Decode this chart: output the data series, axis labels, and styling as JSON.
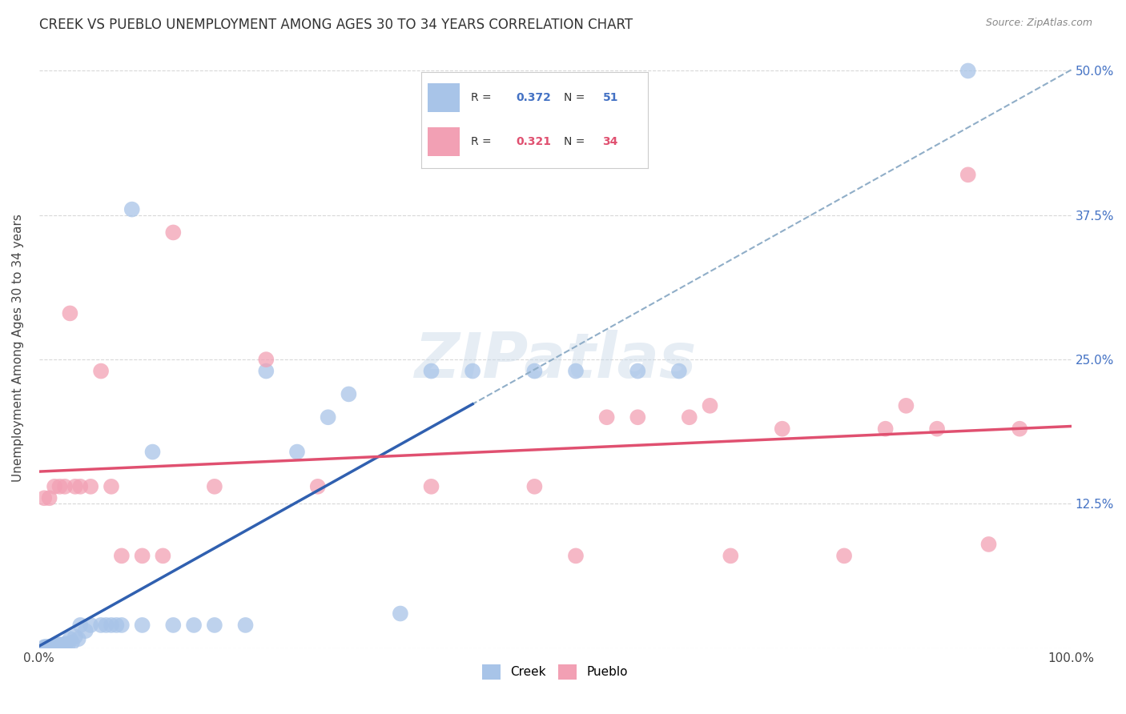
{
  "title": "CREEK VS PUEBLO UNEMPLOYMENT AMONG AGES 30 TO 34 YEARS CORRELATION CHART",
  "source": "Source: ZipAtlas.com",
  "ylabel": "Unemployment Among Ages 30 to 34 years",
  "xlim": [
    0,
    1.0
  ],
  "ylim": [
    0,
    0.52
  ],
  "yticks": [
    0.0,
    0.125,
    0.25,
    0.375,
    0.5
  ],
  "yticklabels": [
    "",
    "12.5%",
    "25.0%",
    "37.5%",
    "50.0%"
  ],
  "creek_color": "#a8c4e8",
  "pueblo_color": "#f2a0b4",
  "creek_line_color": "#3060b0",
  "pueblo_line_color": "#e05070",
  "dashed_line_color": "#90aec8",
  "creek_R": 0.372,
  "creek_N": 51,
  "pueblo_R": 0.321,
  "pueblo_N": 34,
  "creek_scatter": [
    [
      0.005,
      0.001
    ],
    [
      0.006,
      0.001
    ],
    [
      0.007,
      0.001
    ],
    [
      0.008,
      0.001
    ],
    [
      0.009,
      0.001
    ],
    [
      0.01,
      0.001
    ],
    [
      0.011,
      0.001
    ],
    [
      0.012,
      0.001
    ],
    [
      0.013,
      0.001
    ],
    [
      0.014,
      0.001
    ],
    [
      0.015,
      0.001
    ],
    [
      0.016,
      0.001
    ],
    [
      0.017,
      0.002
    ],
    [
      0.018,
      0.001
    ],
    [
      0.019,
      0.003
    ],
    [
      0.02,
      0.003
    ],
    [
      0.022,
      0.003
    ],
    [
      0.024,
      0.003
    ],
    [
      0.026,
      0.004
    ],
    [
      0.028,
      0.003
    ],
    [
      0.03,
      0.008
    ],
    [
      0.032,
      0.005
    ],
    [
      0.035,
      0.01
    ],
    [
      0.038,
      0.008
    ],
    [
      0.04,
      0.02
    ],
    [
      0.045,
      0.015
    ],
    [
      0.05,
      0.02
    ],
    [
      0.06,
      0.02
    ],
    [
      0.065,
      0.02
    ],
    [
      0.07,
      0.02
    ],
    [
      0.075,
      0.02
    ],
    [
      0.08,
      0.02
    ],
    [
      0.09,
      0.38
    ],
    [
      0.1,
      0.02
    ],
    [
      0.11,
      0.17
    ],
    [
      0.13,
      0.02
    ],
    [
      0.15,
      0.02
    ],
    [
      0.17,
      0.02
    ],
    [
      0.2,
      0.02
    ],
    [
      0.22,
      0.24
    ],
    [
      0.25,
      0.17
    ],
    [
      0.28,
      0.2
    ],
    [
      0.3,
      0.22
    ],
    [
      0.35,
      0.03
    ],
    [
      0.38,
      0.24
    ],
    [
      0.42,
      0.24
    ],
    [
      0.48,
      0.24
    ],
    [
      0.52,
      0.24
    ],
    [
      0.58,
      0.24
    ],
    [
      0.62,
      0.24
    ],
    [
      0.9,
      0.5
    ]
  ],
  "pueblo_scatter": [
    [
      0.005,
      0.13
    ],
    [
      0.01,
      0.13
    ],
    [
      0.015,
      0.14
    ],
    [
      0.02,
      0.14
    ],
    [
      0.025,
      0.14
    ],
    [
      0.03,
      0.29
    ],
    [
      0.035,
      0.14
    ],
    [
      0.04,
      0.14
    ],
    [
      0.05,
      0.14
    ],
    [
      0.06,
      0.24
    ],
    [
      0.07,
      0.14
    ],
    [
      0.08,
      0.08
    ],
    [
      0.1,
      0.08
    ],
    [
      0.12,
      0.08
    ],
    [
      0.13,
      0.36
    ],
    [
      0.17,
      0.14
    ],
    [
      0.22,
      0.25
    ],
    [
      0.27,
      0.14
    ],
    [
      0.38,
      0.14
    ],
    [
      0.48,
      0.14
    ],
    [
      0.52,
      0.08
    ],
    [
      0.55,
      0.2
    ],
    [
      0.58,
      0.2
    ],
    [
      0.63,
      0.2
    ],
    [
      0.65,
      0.21
    ],
    [
      0.67,
      0.08
    ],
    [
      0.72,
      0.19
    ],
    [
      0.78,
      0.08
    ],
    [
      0.82,
      0.19
    ],
    [
      0.84,
      0.21
    ],
    [
      0.87,
      0.19
    ],
    [
      0.9,
      0.41
    ],
    [
      0.92,
      0.09
    ],
    [
      0.95,
      0.19
    ]
  ],
  "watermark_text": "ZIPatlas",
  "background_color": "#ffffff",
  "grid_color": "#d8d8d8"
}
